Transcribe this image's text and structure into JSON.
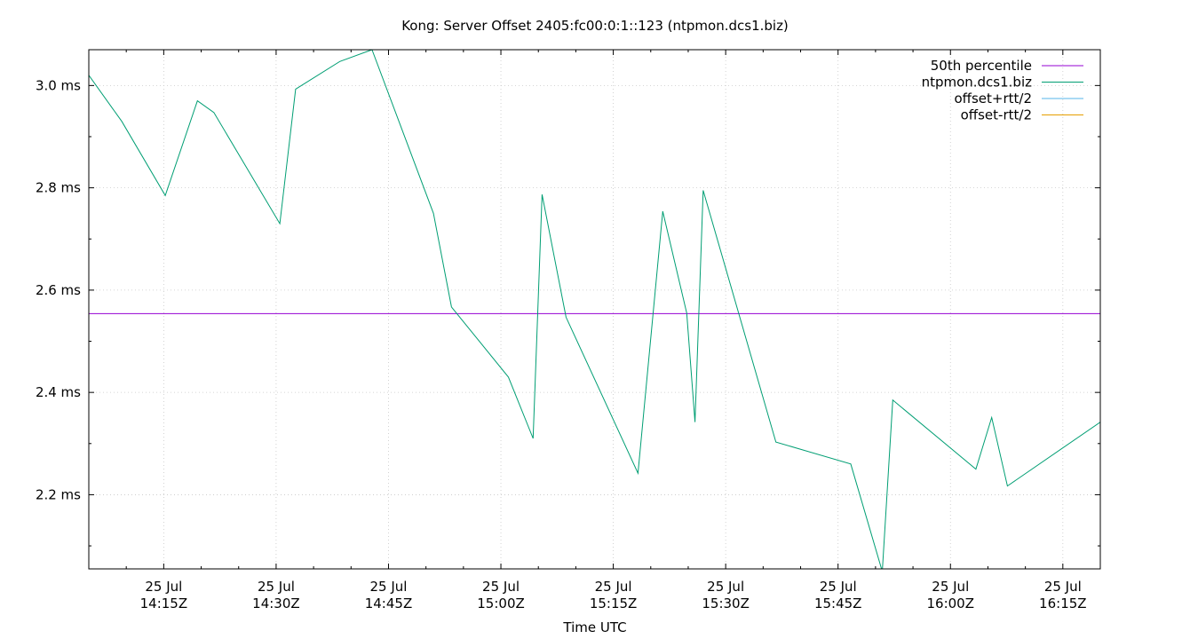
{
  "chart_data": {
    "type": "line",
    "title": "Kong: Server Offset 2405:fc00:0:1::123 (ntpmon.dcs1.biz)",
    "xlabel": "Time UTC",
    "ylabel": "",
    "xlim_minutes_utc": [
      "14:05",
      "16:20"
    ],
    "ylim_ms": [
      2.055,
      3.07
    ],
    "grid": true,
    "legend_position": "top-right",
    "y_ticks": [
      {
        "value": 2.2,
        "label": "2.2 ms"
      },
      {
        "value": 2.4,
        "label": "2.4 ms"
      },
      {
        "value": 2.6,
        "label": "2.6 ms"
      },
      {
        "value": 2.8,
        "label": "2.8 ms"
      },
      {
        "value": 3.0,
        "label": "3.0 ms"
      }
    ],
    "x_ticks": [
      {
        "time": "14:15",
        "date": "25 Jul",
        "label": "14:15Z"
      },
      {
        "time": "14:30",
        "date": "25 Jul",
        "label": "14:30Z"
      },
      {
        "time": "14:45",
        "date": "25 Jul",
        "label": "14:45Z"
      },
      {
        "time": "15:00",
        "date": "25 Jul",
        "label": "15:00Z"
      },
      {
        "time": "15:15",
        "date": "25 Jul",
        "label": "15:15Z"
      },
      {
        "time": "15:30",
        "date": "25 Jul",
        "label": "15:30Z"
      },
      {
        "time": "15:45",
        "date": "25 Jul",
        "label": "15:45Z"
      },
      {
        "time": "16:00",
        "date": "25 Jul",
        "label": "16:00Z"
      },
      {
        "time": "16:15",
        "date": "25 Jul",
        "label": "16:15Z"
      }
    ],
    "series": [
      {
        "name": "50th percentile",
        "color": "#9400d3",
        "constant": 2.554
      },
      {
        "name": "ntpmon.dcs1.biz",
        "color": "#009e73",
        "points": [
          [
            "14:05",
            3.02
          ],
          [
            "14:09.4",
            2.93
          ],
          [
            "14:15.2",
            2.785
          ],
          [
            "14:19.5",
            2.97
          ],
          [
            "14:21.7",
            2.947
          ],
          [
            "14:30.5",
            2.73
          ],
          [
            "14:32.6",
            2.993
          ],
          [
            "14:38.5",
            3.047
          ],
          [
            "14:42.8",
            3.07
          ],
          [
            "14:51",
            2.75
          ],
          [
            "14:53.4",
            2.567
          ],
          [
            "15:01",
            2.43
          ],
          [
            "15:04.3",
            2.31
          ],
          [
            "15:05.5",
            2.787
          ],
          [
            "15:08.7",
            2.547
          ],
          [
            "15:18.3",
            2.242
          ],
          [
            "15:21.6",
            2.754
          ],
          [
            "15:24.8",
            2.555
          ],
          [
            "15:25.9",
            2.342
          ],
          [
            "15:27",
            2.795
          ],
          [
            "15:36.7",
            2.303
          ],
          [
            "15:46.7",
            2.26
          ],
          [
            "15:50.9",
            2.05
          ],
          [
            "15:52.3",
            2.385
          ],
          [
            "16:03.4",
            2.25
          ],
          [
            "16:05.5",
            2.351
          ],
          [
            "16:07.6",
            2.217
          ],
          [
            "16:20",
            2.342
          ]
        ]
      },
      {
        "name": "offset+rtt/2",
        "color": "#56b4e9",
        "points": []
      },
      {
        "name": "offset-rtt/2",
        "color": "#e69f00",
        "points": []
      }
    ]
  }
}
